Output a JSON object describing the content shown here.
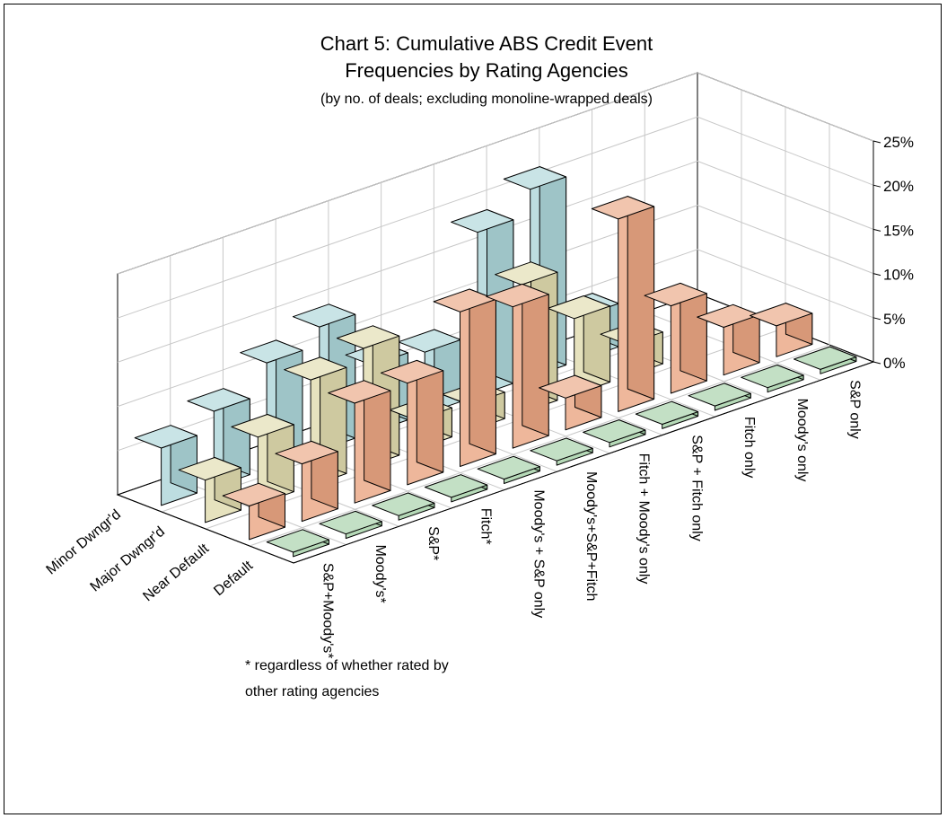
{
  "chart_data": {
    "type": "bar",
    "title": "Chart 5: Cumulative ABS Credit Event",
    "title_line2": "Frequencies by Rating Agencies",
    "subtitle": "(by no. of deals; excluding monoline-wrapped deals)",
    "zlim": [
      0,
      25
    ],
    "z_ticks": [
      "0%",
      "5%",
      "10%",
      "15%",
      "20%",
      "25%"
    ],
    "grid": true,
    "x_categories": [
      "S&P+Moody's*",
      "Moody's*",
      "S&P*",
      "Fitch*",
      "Moody's + S&P only",
      "Moody's+S&P+Fitch",
      "Fitch + Moody's only",
      "S&P + Fitch only",
      "Fitch only",
      "Moody's only",
      "S&P only"
    ],
    "series": [
      {
        "name": "Minor Dwngr'd",
        "values": [
          6.5,
          8.6,
          12.0,
          14.0,
          7.6,
          7.0,
          18.5,
          21.3,
          4.9,
          0.0,
          0.0
        ]
      },
      {
        "name": "Major Dwngr'd",
        "values": [
          4.8,
          7.6,
          12.0,
          13.5,
          3.3,
          3.0,
          14.5,
          8.6,
          3.6,
          0.0,
          0.0
        ]
      },
      {
        "name": "Near Default",
        "values": [
          3.8,
          6.5,
          11.3,
          11.5,
          17.5,
          16.0,
          3.6,
          21.8,
          9.9,
          5.4,
          3.5
        ]
      },
      {
        "name": "Default",
        "values": [
          0.5,
          0.5,
          0.5,
          0.5,
          0.5,
          0.5,
          0.5,
          0.5,
          0.5,
          0.5,
          0.5
        ]
      }
    ],
    "colors": {
      "Minor Dwngr'd": "#acd5d8",
      "Major Dwngr'd": "#e0dbae",
      "Near Default": "#eaa582",
      "Default": "#a2cfa5"
    }
  },
  "footnote_line1": "* regardless of whether rated by",
  "footnote_line2": "other rating agencies"
}
